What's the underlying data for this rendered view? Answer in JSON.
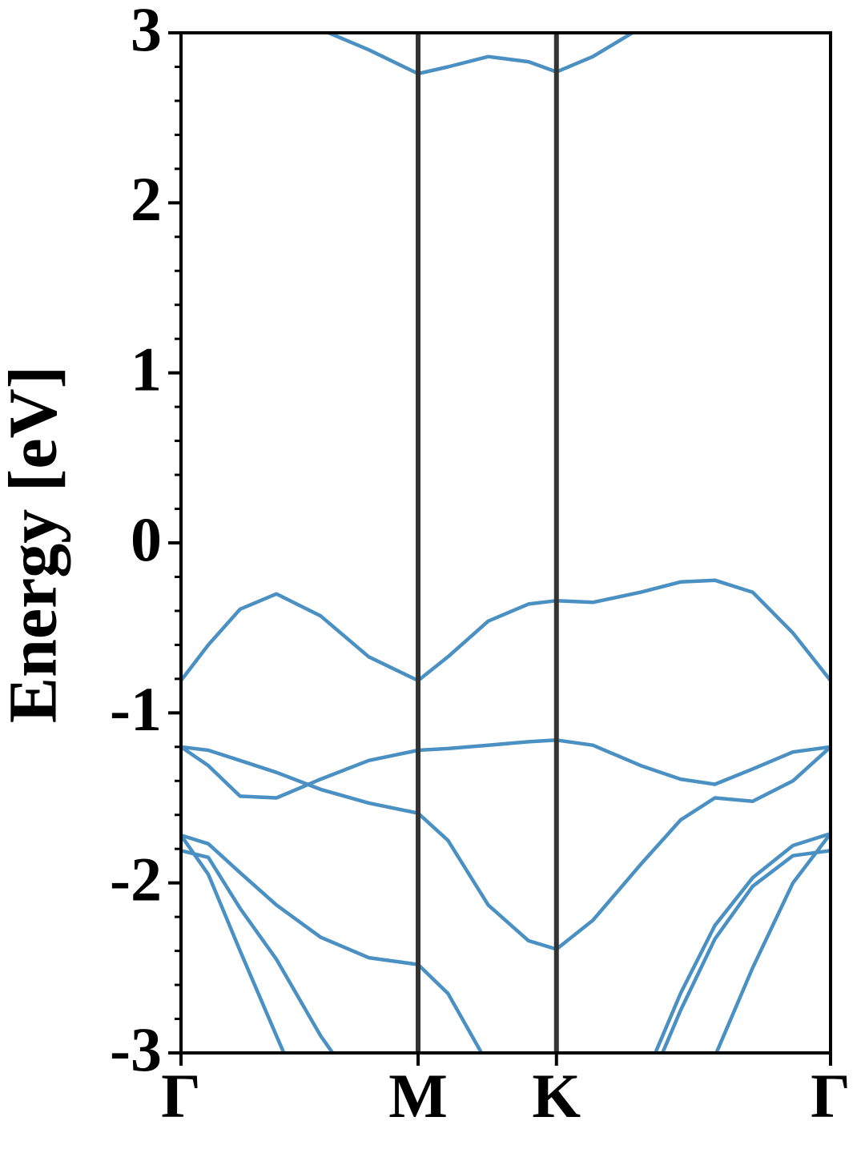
{
  "chart_data": {
    "type": "line",
    "ylabel": "Energy [eV]",
    "x": [
      0,
      0.042,
      0.091,
      0.147,
      0.215,
      0.289,
      0.365,
      0.411,
      0.473,
      0.535,
      0.578,
      0.634,
      0.708,
      0.769,
      0.822,
      0.88,
      0.942,
      1
    ],
    "xlim": [
      0,
      1
    ],
    "xticks": [
      {
        "value": 0,
        "label": "Γ"
      },
      {
        "value": 0.365,
        "label": "M"
      },
      {
        "value": 0.578,
        "label": "K"
      },
      {
        "value": 1,
        "label": "Γ"
      }
    ],
    "ylim": [
      -3,
      3
    ],
    "yticks": [
      -3,
      -2,
      -1,
      0,
      1,
      2,
      3
    ],
    "yminorticks": [
      -2.8,
      -2.6,
      -2.4,
      -2.2,
      -1.8,
      -1.6,
      -1.4,
      -1.2,
      -0.8,
      -0.6,
      -0.4,
      -0.2,
      0.2,
      0.4,
      0.6,
      0.8,
      1.2,
      1.4,
      1.6,
      1.8,
      2.2,
      2.4,
      2.6,
      2.8
    ],
    "symmetry_lines": true,
    "line_color": "#333333",
    "series": [
      {
        "color": "#4a90c2",
        "values": [
          null,
          null,
          null,
          3.3,
          3.02,
          2.9,
          2.76,
          2.8,
          2.86,
          2.83,
          2.77,
          2.86,
          3.03,
          3.3,
          null,
          null,
          null,
          null
        ]
      },
      {
        "color": "#4a90c2",
        "values": [
          -0.81,
          -0.6,
          -0.39,
          -0.3,
          -0.43,
          -0.67,
          -0.81,
          -0.67,
          -0.46,
          -0.36,
          -0.34,
          -0.35,
          -0.29,
          -0.23,
          -0.22,
          -0.29,
          -0.53,
          -0.81
        ]
      },
      {
        "color": "#4a90c2",
        "values": [
          -1.2,
          -1.31,
          -1.49,
          -1.5,
          -1.39,
          -1.28,
          -1.22,
          -1.21,
          -1.19,
          -1.17,
          -1.16,
          -1.19,
          -1.31,
          -1.39,
          -1.42,
          -1.33,
          -1.23,
          -1.2
        ]
      },
      {
        "color": "#4a90c2",
        "values": [
          -1.2,
          -1.22,
          -1.28,
          -1.35,
          -1.45,
          -1.53,
          -1.59,
          -1.75,
          -2.13,
          -2.34,
          -2.39,
          -2.22,
          -1.89,
          -1.63,
          -1.5,
          -1.52,
          -1.4,
          -1.2
        ]
      },
      {
        "color": "#4a90c2",
        "values": [
          -1.72,
          -1.77,
          -1.94,
          -2.13,
          -2.32,
          -2.44,
          -2.48,
          -2.65,
          -3.07,
          -3.4,
          null,
          null,
          null,
          null,
          null,
          null,
          null,
          null
        ]
      },
      {
        "color": "#4a90c2",
        "values": [
          -1.72,
          -1.95,
          -2.4,
          -2.9,
          -3.5,
          null,
          null,
          null,
          null,
          null,
          null,
          null,
          null,
          null,
          null,
          null,
          null,
          null
        ]
      },
      {
        "color": "#4a90c2",
        "values": [
          -1.81,
          -1.85,
          -2.15,
          -2.45,
          -2.9,
          -3.3,
          null,
          null,
          null,
          null,
          null,
          null,
          null,
          null,
          null,
          null,
          null,
          null
        ]
      },
      {
        "color": "#4a90c2",
        "values": [
          null,
          null,
          null,
          null,
          null,
          null,
          null,
          null,
          null,
          null,
          null,
          null,
          -3.2,
          -2.65,
          -2.25,
          -1.97,
          -1.78,
          -1.71
        ]
      },
      {
        "color": "#4a90c2",
        "values": [
          null,
          null,
          null,
          null,
          null,
          null,
          null,
          null,
          null,
          null,
          null,
          null,
          -3.3,
          -2.75,
          -2.33,
          -2.02,
          -1.84,
          -1.81
        ]
      },
      {
        "color": "#4a90c2",
        "values": [
          null,
          null,
          null,
          null,
          null,
          null,
          null,
          null,
          null,
          null,
          null,
          null,
          null,
          -3.4,
          -3.02,
          -2.5,
          -2.0,
          -1.71
        ]
      }
    ]
  }
}
